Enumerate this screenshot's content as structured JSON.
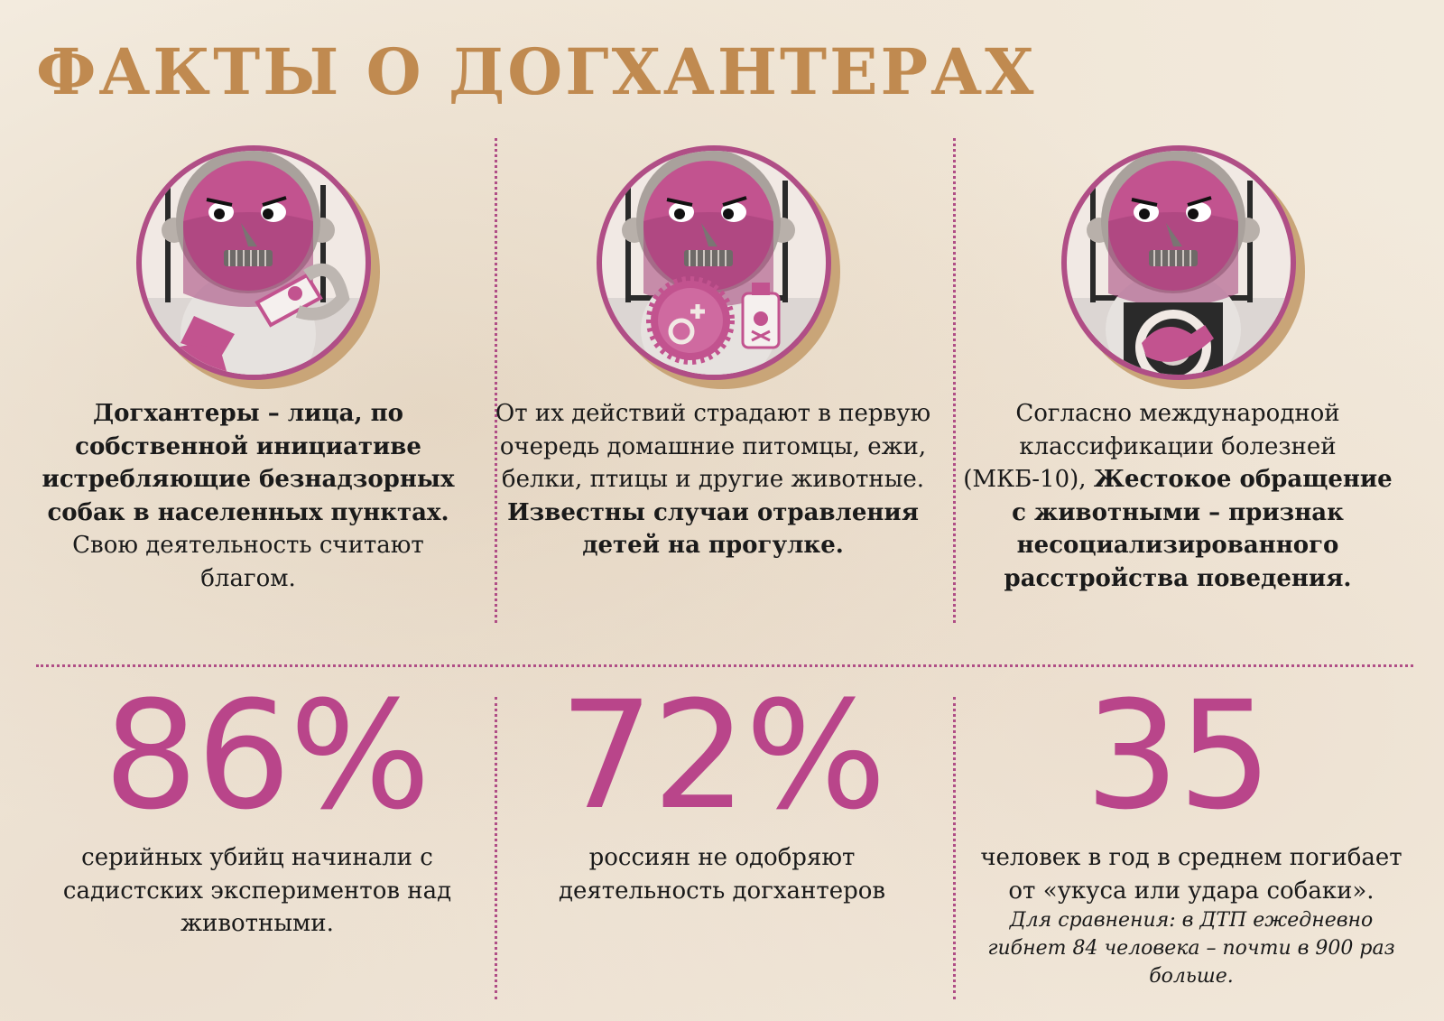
{
  "title": "ФАКТЫ О ДОГХАНТЕРАХ",
  "colors": {
    "title": "#c08a50",
    "accent": "#b9458a",
    "divider": "#b04e86",
    "mask": "#c2538f"
  },
  "facts": [
    {
      "bold": "Догхантеры – лица, по собственной инициативе истребляющие безнадзорных собак в населенных пунктах.",
      "regular": "Свою деятельность считают благом.",
      "icon": "dog-poisoning-illustration"
    },
    {
      "regular": "От их действий страдают в первую очередь домашние питомцы, ежи, белки, птицы и другие животные.",
      "bold": "Известны случаи отравления детей на прогулке.",
      "icon": "poison-bait-illustration"
    },
    {
      "regular": "Согласно международной классификации болезней (МКБ-10),",
      "bold": "Жестокое обращение с животными – признак несоциализированного расстройства поведения.",
      "icon": "animal-cruelty-illustration"
    }
  ],
  "stats": [
    {
      "value": "86%",
      "text": "серийных убийц начинали с садистских экспериментов над животными."
    },
    {
      "value": "72%",
      "text": "россиян не одобряют деятельность догхантеров"
    },
    {
      "value": "35",
      "text": "человек в год в среднем погибает от «укуса или удара собаки».",
      "note": "Для сравнения: в ДТП ежедневно гибнет 84 человека – почти в 900 раз больше."
    }
  ]
}
